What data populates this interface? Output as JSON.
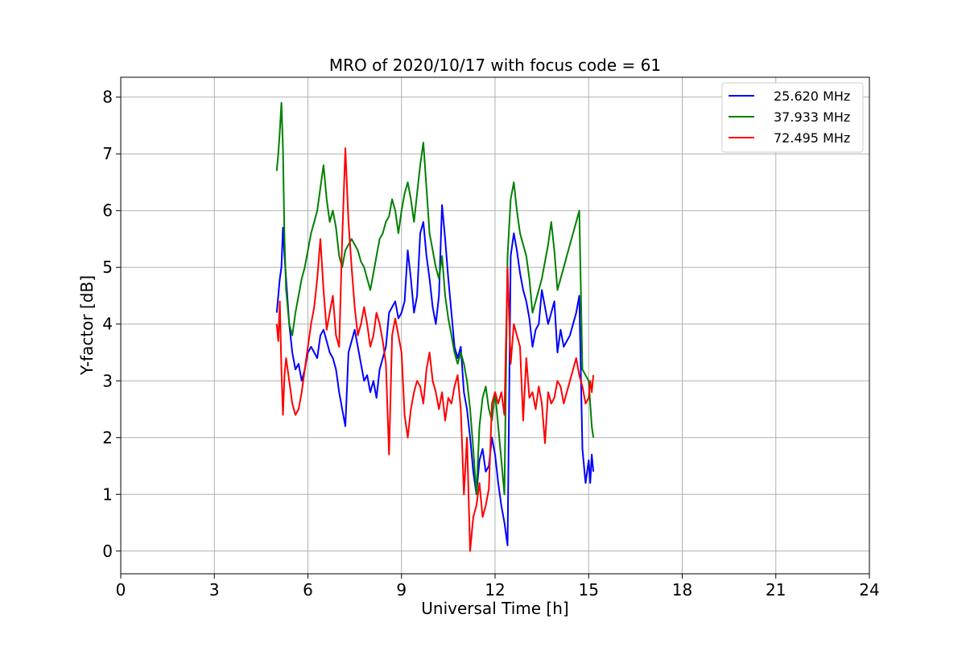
{
  "chart_data": {
    "type": "line",
    "title": "MRO of 2020/10/17 with focus code = 61",
    "xlabel": "Universal Time [h]",
    "ylabel": "Y-factor [dB]",
    "xlim": [
      0,
      24
    ],
    "ylim": [
      -0.4,
      8.35
    ],
    "xticks": [
      0,
      3,
      6,
      9,
      12,
      15,
      18,
      21,
      24
    ],
    "xtick_labels": [
      "0",
      "3",
      "6",
      "9",
      "12",
      "15",
      "18",
      "21",
      "24"
    ],
    "yticks": [
      0,
      1,
      2,
      3,
      4,
      5,
      6,
      7,
      8
    ],
    "ytick_labels": [
      "0",
      "1",
      "2",
      "3",
      "4",
      "5",
      "6",
      "7",
      "8"
    ],
    "grid": true,
    "legend_position": "top-right",
    "series": [
      {
        "name": "25.620 MHz",
        "color": "#0000ff",
        "x": [
          5.0,
          5.05,
          5.1,
          5.15,
          5.2,
          5.25,
          5.3,
          5.4,
          5.5,
          5.6,
          5.7,
          5.8,
          5.9,
          6.0,
          6.1,
          6.2,
          6.3,
          6.4,
          6.5,
          6.6,
          6.7,
          6.8,
          6.9,
          7.0,
          7.1,
          7.2,
          7.3,
          7.4,
          7.5,
          7.6,
          7.7,
          7.8,
          7.9,
          8.0,
          8.1,
          8.2,
          8.3,
          8.4,
          8.5,
          8.6,
          8.7,
          8.8,
          8.9,
          9.0,
          9.1,
          9.2,
          9.3,
          9.4,
          9.5,
          9.6,
          9.7,
          9.8,
          9.9,
          10.0,
          10.1,
          10.2,
          10.3,
          10.4,
          10.5,
          10.6,
          10.7,
          10.8,
          10.9,
          11.0,
          11.1,
          11.2,
          11.3,
          11.4,
          11.5,
          11.6,
          11.7,
          11.8,
          11.9,
          12.0,
          12.1,
          12.2,
          12.3,
          12.4,
          12.5,
          12.6,
          12.7,
          12.8,
          12.9,
          13.0,
          13.1,
          13.2,
          13.3,
          13.4,
          13.5,
          13.6,
          13.7,
          13.8,
          13.9,
          14.0,
          14.1,
          14.2,
          14.3,
          14.4,
          14.5,
          14.6,
          14.7,
          14.8,
          14.9,
          15.0,
          15.05,
          15.1,
          15.15
        ],
        "y": [
          4.2,
          4.5,
          4.8,
          5.0,
          5.7,
          5.2,
          4.8,
          4.0,
          3.5,
          3.2,
          3.3,
          3.0,
          3.2,
          3.5,
          3.6,
          3.5,
          3.4,
          3.8,
          3.9,
          3.7,
          3.5,
          3.4,
          3.2,
          2.8,
          2.5,
          2.2,
          3.5,
          3.7,
          3.9,
          3.6,
          3.3,
          3.0,
          3.1,
          2.8,
          3.0,
          2.7,
          3.2,
          3.4,
          3.6,
          4.2,
          4.3,
          4.4,
          4.1,
          4.2,
          4.4,
          5.3,
          4.8,
          4.2,
          4.5,
          5.6,
          5.8,
          5.2,
          4.8,
          4.3,
          4.0,
          4.5,
          6.1,
          5.5,
          4.8,
          4.2,
          3.6,
          3.4,
          3.6,
          2.8,
          2.5,
          2.0,
          1.4,
          1.0,
          1.6,
          1.8,
          1.4,
          1.5,
          2.0,
          1.7,
          1.2,
          0.8,
          0.5,
          0.1,
          5.2,
          5.6,
          5.3,
          4.9,
          4.6,
          4.4,
          4.1,
          3.6,
          3.9,
          4.0,
          4.6,
          4.3,
          4.0,
          4.2,
          4.4,
          3.5,
          3.9,
          3.6,
          3.7,
          3.8,
          4.0,
          4.2,
          4.5,
          1.8,
          1.2,
          1.6,
          1.2,
          1.7,
          1.4
        ]
      },
      {
        "name": "37.933 MHz",
        "color": "#008000",
        "x": [
          5.0,
          5.05,
          5.1,
          5.15,
          5.2,
          5.25,
          5.3,
          5.4,
          5.5,
          5.6,
          5.7,
          5.8,
          5.9,
          6.0,
          6.1,
          6.2,
          6.3,
          6.4,
          6.5,
          6.6,
          6.7,
          6.8,
          6.9,
          7.0,
          7.1,
          7.2,
          7.3,
          7.4,
          7.5,
          7.6,
          7.7,
          7.8,
          7.9,
          8.0,
          8.1,
          8.2,
          8.3,
          8.4,
          8.5,
          8.6,
          8.7,
          8.8,
          8.9,
          9.0,
          9.1,
          9.2,
          9.3,
          9.4,
          9.5,
          9.6,
          9.7,
          9.8,
          9.9,
          10.0,
          10.1,
          10.2,
          10.3,
          10.4,
          10.5,
          10.6,
          10.7,
          10.8,
          10.9,
          11.0,
          11.1,
          11.2,
          11.3,
          11.4,
          11.5,
          11.6,
          11.7,
          11.8,
          11.9,
          12.0,
          12.1,
          12.2,
          12.3,
          12.4,
          12.5,
          12.6,
          12.7,
          12.8,
          12.9,
          13.0,
          13.1,
          13.2,
          13.3,
          13.4,
          13.5,
          13.6,
          13.7,
          13.8,
          13.9,
          14.0,
          14.1,
          14.2,
          14.3,
          14.4,
          14.5,
          14.6,
          14.7,
          14.8,
          14.9,
          15.0,
          15.05,
          15.1,
          15.15
        ],
        "y": [
          6.7,
          7.0,
          7.4,
          7.9,
          7.1,
          5.5,
          4.6,
          4.0,
          3.8,
          4.2,
          4.5,
          4.8,
          5.0,
          5.3,
          5.6,
          5.8,
          6.0,
          6.4,
          6.8,
          6.2,
          5.8,
          6.0,
          5.7,
          5.2,
          5.0,
          5.3,
          5.4,
          5.5,
          5.4,
          5.3,
          5.1,
          5.0,
          4.8,
          4.6,
          4.9,
          5.2,
          5.5,
          5.6,
          5.8,
          5.9,
          6.2,
          6.0,
          5.6,
          6.0,
          6.3,
          6.5,
          6.2,
          5.8,
          6.3,
          6.8,
          7.2,
          6.4,
          5.6,
          5.3,
          5.0,
          4.8,
          5.2,
          4.5,
          4.1,
          3.8,
          3.5,
          3.3,
          3.5,
          3.3,
          3.0,
          2.5,
          1.8,
          1.0,
          2.2,
          2.7,
          2.9,
          2.5,
          2.3,
          2.8,
          2.2,
          1.6,
          1.0,
          5.2,
          6.2,
          6.5,
          6.0,
          5.6,
          5.4,
          5.2,
          4.8,
          4.2,
          4.4,
          4.6,
          4.8,
          5.1,
          5.4,
          5.8,
          5.3,
          4.6,
          4.8,
          5.0,
          5.2,
          5.4,
          5.6,
          5.8,
          6.0,
          3.2,
          3.1,
          3.0,
          2.6,
          2.2,
          2.0
        ]
      },
      {
        "name": "72.495 MHz",
        "color": "#ff0000",
        "x": [
          5.0,
          5.05,
          5.1,
          5.15,
          5.2,
          5.25,
          5.3,
          5.4,
          5.5,
          5.6,
          5.7,
          5.8,
          5.9,
          6.0,
          6.1,
          6.2,
          6.3,
          6.4,
          6.5,
          6.6,
          6.7,
          6.8,
          6.9,
          7.0,
          7.1,
          7.2,
          7.3,
          7.4,
          7.5,
          7.6,
          7.7,
          7.8,
          7.9,
          8.0,
          8.1,
          8.2,
          8.3,
          8.4,
          8.5,
          8.6,
          8.7,
          8.8,
          8.9,
          9.0,
          9.1,
          9.2,
          9.3,
          9.4,
          9.5,
          9.6,
          9.7,
          9.8,
          9.9,
          10.0,
          10.1,
          10.2,
          10.3,
          10.4,
          10.5,
          10.6,
          10.7,
          10.8,
          10.9,
          11.0,
          11.1,
          11.2,
          11.3,
          11.4,
          11.5,
          11.6,
          11.7,
          11.8,
          11.9,
          12.0,
          12.1,
          12.2,
          12.3,
          12.4,
          12.5,
          12.6,
          12.7,
          12.8,
          12.9,
          13.0,
          13.1,
          13.2,
          13.3,
          13.4,
          13.5,
          13.6,
          13.7,
          13.8,
          13.9,
          14.0,
          14.1,
          14.2,
          14.3,
          14.4,
          14.5,
          14.6,
          14.7,
          14.8,
          14.9,
          15.0,
          15.05,
          15.1,
          15.15
        ],
        "y": [
          4.0,
          3.7,
          4.4,
          3.2,
          2.4,
          3.1,
          3.4,
          3.0,
          2.6,
          2.4,
          2.5,
          2.8,
          3.2,
          3.6,
          4.0,
          4.3,
          4.8,
          5.5,
          4.6,
          3.9,
          4.2,
          4.5,
          3.8,
          3.6,
          5.5,
          7.1,
          5.8,
          5.0,
          4.3,
          3.8,
          4.0,
          4.3,
          4.0,
          3.6,
          3.8,
          4.2,
          4.0,
          3.7,
          3.3,
          1.7,
          3.8,
          4.1,
          3.8,
          3.5,
          2.4,
          2.0,
          2.5,
          2.8,
          3.0,
          2.9,
          2.6,
          3.2,
          3.5,
          3.0,
          2.8,
          2.5,
          2.8,
          2.3,
          2.7,
          2.6,
          2.9,
          3.1,
          2.5,
          1.0,
          2.0,
          0.0,
          0.6,
          0.8,
          1.2,
          0.6,
          0.8,
          1.1,
          2.6,
          2.8,
          2.6,
          2.8,
          2.4,
          5.0,
          3.3,
          4.0,
          3.8,
          3.6,
          2.3,
          3.4,
          2.7,
          2.8,
          2.5,
          2.9,
          2.6,
          1.9,
          2.8,
          2.6,
          2.7,
          3.0,
          2.9,
          2.6,
          2.8,
          3.0,
          3.2,
          3.4,
          3.1,
          2.9,
          2.6,
          2.7,
          3.0,
          2.8,
          3.1
        ]
      }
    ]
  }
}
